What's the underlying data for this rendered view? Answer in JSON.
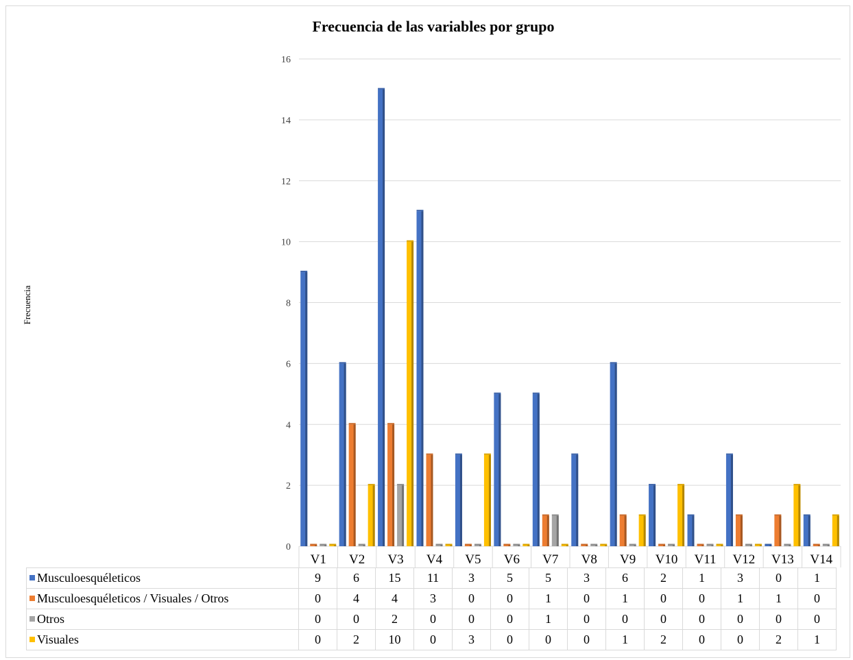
{
  "chart_data": {
    "type": "bar",
    "title": "Frecuencia de las variables por grupo",
    "ylabel": "Frecuencia",
    "xlabel": "",
    "ylim": [
      0,
      16
    ],
    "y_ticks": [
      0,
      2,
      4,
      6,
      8,
      10,
      12,
      14,
      16
    ],
    "grid": true,
    "legend": "data-table",
    "categories": [
      "V1",
      "V2",
      "V3",
      "V4",
      "V5",
      "V6",
      "V7",
      "V8",
      "V9",
      "V10",
      "V11",
      "V12",
      "V13",
      "V14"
    ],
    "series": [
      {
        "name": "Musculoesquéleticos",
        "color": "#4472c4",
        "values": [
          9,
          6,
          15,
          11,
          3,
          5,
          5,
          3,
          6,
          2,
          1,
          3,
          0,
          1
        ]
      },
      {
        "name": "Musculoesquéleticos / Visuales / Otros",
        "color": "#ed7d31",
        "values": [
          0,
          4,
          4,
          3,
          0,
          0,
          1,
          0,
          1,
          0,
          0,
          1,
          1,
          0
        ]
      },
      {
        "name": "Otros",
        "color": "#a5a5a5",
        "values": [
          0,
          0,
          2,
          0,
          0,
          0,
          1,
          0,
          0,
          0,
          0,
          0,
          0,
          0
        ]
      },
      {
        "name": "Visuales",
        "color": "#ffc000",
        "values": [
          0,
          2,
          10,
          0,
          3,
          0,
          0,
          0,
          1,
          2,
          0,
          0,
          2,
          1
        ]
      }
    ]
  }
}
